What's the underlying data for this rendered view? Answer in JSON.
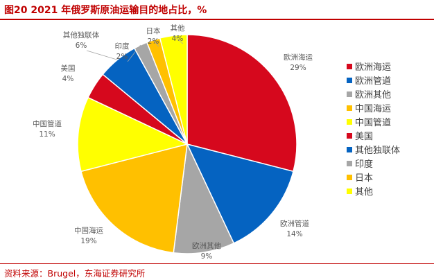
{
  "header": {
    "title": "图20  2021 年俄罗斯原油运输目的地占比，%"
  },
  "footer": {
    "source": "资料来源：Brugel，东海证券研究所"
  },
  "chart_data": {
    "type": "pie",
    "title": "",
    "unit": "%",
    "slices": [
      {
        "name": "欧洲海运",
        "value": 29,
        "label": "29%",
        "color": "#d6081d"
      },
      {
        "name": "欧洲管道",
        "value": 14,
        "label": "14%",
        "color": "#0563c1"
      },
      {
        "name": "欧洲其他",
        "value": 9,
        "label": "9%",
        "color": "#a6a6a6"
      },
      {
        "name": "中国海运",
        "value": 19,
        "label": "19%",
        "color": "#ffc000"
      },
      {
        "name": "中国管道",
        "value": 11,
        "label": "11%",
        "color": "#ffff00"
      },
      {
        "name": "美国",
        "value": 4,
        "label": "4%",
        "color": "#d6081d"
      },
      {
        "name": "其他独联体",
        "value": 6,
        "label": "6%",
        "color": "#0563c1"
      },
      {
        "name": "印度",
        "value": 2,
        "label": "2%",
        "color": "#a6a6a6"
      },
      {
        "name": "日本",
        "value": 2,
        "label": "2%",
        "color": "#ffc000"
      },
      {
        "name": "其他",
        "value": 4,
        "label": "4%",
        "color": "#ffff00"
      }
    ],
    "legend_position": "right"
  }
}
